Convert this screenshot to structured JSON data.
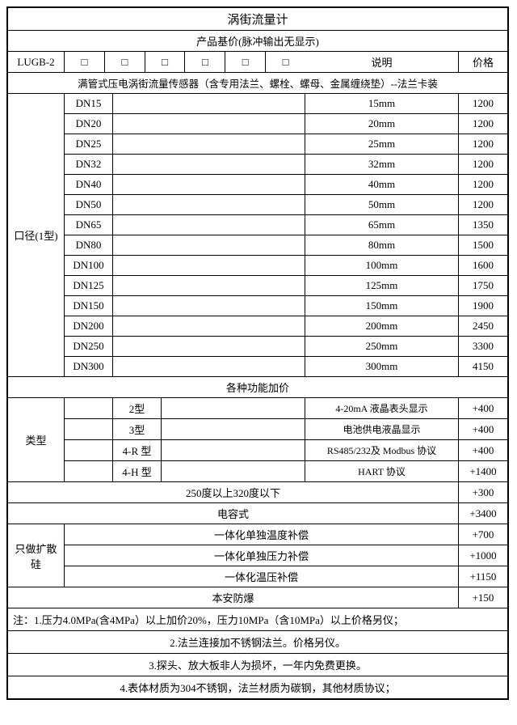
{
  "title": "涡街流量计",
  "subtitle": "产品基价(脉冲输出无显示)",
  "header": {
    "lugb": "LUGB-2",
    "desc": "说明",
    "price": "价格"
  },
  "desc_line": "满管式压电涡街流量传感器（含专用法兰、螺栓、螺母、金属缠绕垫）--法兰卡装",
  "diameter_label": "口径(1型)",
  "diameters": [
    {
      "dn": "DN15",
      "desc": "15mm",
      "price": "1200"
    },
    {
      "dn": "DN20",
      "desc": "20mm",
      "price": "1200"
    },
    {
      "dn": "DN25",
      "desc": "25mm",
      "price": "1200"
    },
    {
      "dn": "DN32",
      "desc": "32mm",
      "price": "1200"
    },
    {
      "dn": "DN40",
      "desc": "40mm",
      "price": "1200"
    },
    {
      "dn": "DN50",
      "desc": "50mm",
      "price": "1200"
    },
    {
      "dn": "DN65",
      "desc": "65mm",
      "price": "1350"
    },
    {
      "dn": "DN80",
      "desc": "80mm",
      "price": "1500"
    },
    {
      "dn": "DN100",
      "desc": "100mm",
      "price": "1600"
    },
    {
      "dn": "DN125",
      "desc": "125mm",
      "price": "1750"
    },
    {
      "dn": "DN150",
      "desc": "150mm",
      "price": "1900"
    },
    {
      "dn": "DN200",
      "desc": "200mm",
      "price": "2450"
    },
    {
      "dn": "DN250",
      "desc": "250mm",
      "price": "3300"
    },
    {
      "dn": "DN300",
      "desc": "300mm",
      "price": "4150"
    }
  ],
  "func_title": "各种功能加价",
  "type_label": "类型",
  "types": [
    {
      "t": "2型",
      "desc": "4-20mA 液晶表头显示",
      "price": "+400"
    },
    {
      "t": "3型",
      "desc": "电池供电液晶显示",
      "price": "+400"
    },
    {
      "t": "4-R 型",
      "desc": "RS485/232及 Modbus 协议",
      "price": "+400"
    },
    {
      "t": "4-H 型",
      "desc": "HART 协议",
      "price": "+1400"
    }
  ],
  "temp": {
    "desc": "250度以上320度以下",
    "price": "+300"
  },
  "cap": {
    "desc": "电容式",
    "price": "+3400"
  },
  "diff_label": "只做扩散硅",
  "diffs": [
    {
      "desc": "一体化单独温度补偿",
      "price": "+700"
    },
    {
      "desc": "一体化单独压力补偿",
      "price": "+1000"
    },
    {
      "desc": "一体化温压补偿",
      "price": "+1150"
    }
  ],
  "safe": {
    "desc": "本安防爆",
    "price": "+150"
  },
  "notes": [
    "注：1.压力4.0MPa(含4MPa）以上加价20%，压力10MPa（含10MPa）以上价格另仪；",
    "2.法兰连接加不锈钢法兰。价格另仪。",
    "3.探头、放大板非人为损坏，一年内免费更换。",
    "4.表体材质为304不锈钢，法兰材质为碳钢，其他材质协议；"
  ]
}
